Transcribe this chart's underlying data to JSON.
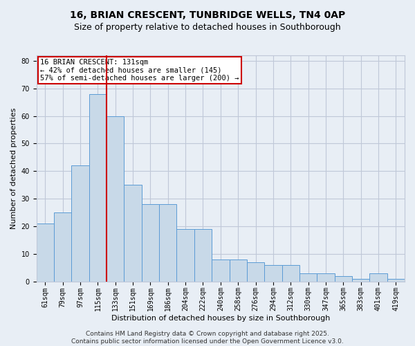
{
  "title_line1": "16, BRIAN CRESCENT, TUNBRIDGE WELLS, TN4 0AP",
  "title_line2": "Size of property relative to detached houses in Southborough",
  "xlabel": "Distribution of detached houses by size in Southborough",
  "ylabel": "Number of detached properties",
  "categories": [
    "61sqm",
    "79sqm",
    "97sqm",
    "115sqm",
    "133sqm",
    "151sqm",
    "169sqm",
    "186sqm",
    "204sqm",
    "222sqm",
    "240sqm",
    "258sqm",
    "276sqm",
    "294sqm",
    "312sqm",
    "330sqm",
    "347sqm",
    "365sqm",
    "383sqm",
    "401sqm",
    "419sqm"
  ],
  "values": [
    21,
    25,
    42,
    68,
    60,
    35,
    28,
    28,
    19,
    19,
    8,
    8,
    7,
    6,
    6,
    3,
    3,
    2,
    1,
    3,
    1
  ],
  "bar_color": "#c8d9e8",
  "bar_edge_color": "#5b9bd5",
  "grid_color": "#c0c8d8",
  "background_color": "#e8eef5",
  "redline_x": 3.5,
  "annotation_line1": "16 BRIAN CRESCENT: 131sqm",
  "annotation_line2": "← 42% of detached houses are smaller (145)",
  "annotation_line3": "57% of semi-detached houses are larger (200) →",
  "annotation_box_color": "#ffffff",
  "annotation_box_edge": "#cc0000",
  "redline_color": "#cc0000",
  "ylim": [
    0,
    82
  ],
  "yticks": [
    0,
    10,
    20,
    30,
    40,
    50,
    60,
    70,
    80
  ],
  "footer_line1": "Contains HM Land Registry data © Crown copyright and database right 2025.",
  "footer_line2": "Contains public sector information licensed under the Open Government Licence v3.0.",
  "title_fontsize": 10,
  "subtitle_fontsize": 9,
  "axis_label_fontsize": 8,
  "tick_fontsize": 7,
  "annotation_fontsize": 7.5,
  "footer_fontsize": 6.5
}
